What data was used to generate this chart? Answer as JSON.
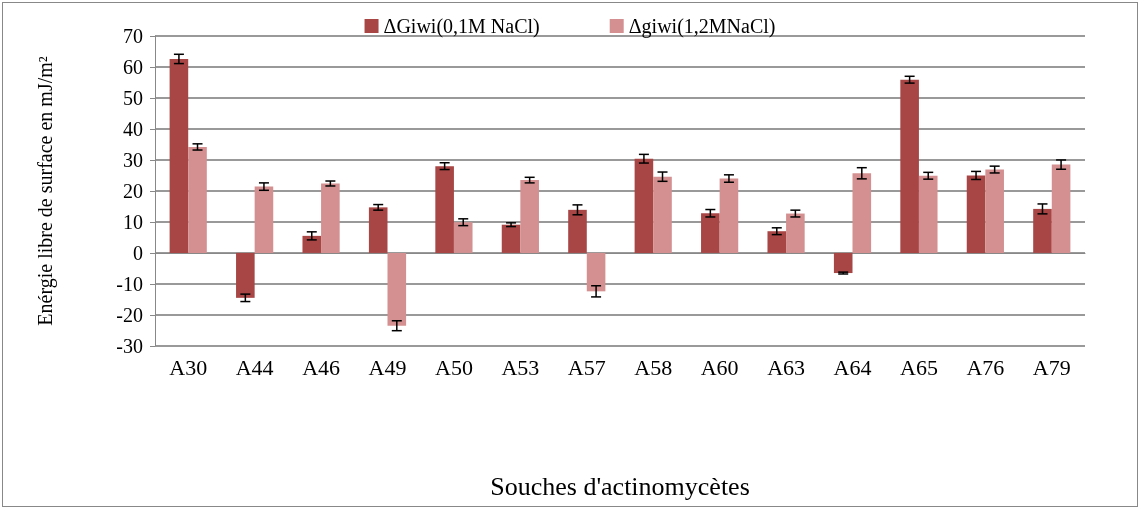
{
  "chart_data": {
    "type": "bar",
    "xlabel": "Souches d'actinomycètes",
    "ylabel": "Enérgie libre de surface en mJ/m²",
    "categories": [
      "A30",
      "A44",
      "A46",
      "A49",
      "A50",
      "A53",
      "A57",
      "A58",
      "A60",
      "A63",
      "A64",
      "A65",
      "A76",
      "A79"
    ],
    "series": [
      {
        "name": "ΔGiwi(0,1M NaCl)",
        "color": "#a84545",
        "values": [
          62.6,
          -14.5,
          5.5,
          14.7,
          28.0,
          9.1,
          13.9,
          30.4,
          12.8,
          7.0,
          -6.5,
          55.9,
          25.0,
          14.2
        ],
        "errors": [
          1.5,
          1.2,
          1.3,
          0.9,
          1.1,
          0.6,
          1.6,
          1.4,
          1.2,
          1.1,
          0.3,
          1.1,
          1.3,
          1.6
        ]
      },
      {
        "name": "Δgiwi(1,2MNaCl)",
        "color": "#d49090",
        "values": [
          34.2,
          21.4,
          22.4,
          -23.5,
          9.9,
          23.5,
          -12.4,
          24.6,
          24.0,
          12.7,
          25.7,
          24.9,
          26.9,
          28.5
        ],
        "errors": [
          1.0,
          1.2,
          0.8,
          1.6,
          1.1,
          0.9,
          1.8,
          1.5,
          1.2,
          1.1,
          1.8,
          1.1,
          1.1,
          1.5
        ]
      }
    ],
    "ylim": [
      -30,
      70
    ],
    "yticks": [
      -30,
      -20,
      -10,
      0,
      10,
      20,
      30,
      40,
      50,
      60,
      70
    ],
    "grid": "y",
    "legend": "top"
  }
}
